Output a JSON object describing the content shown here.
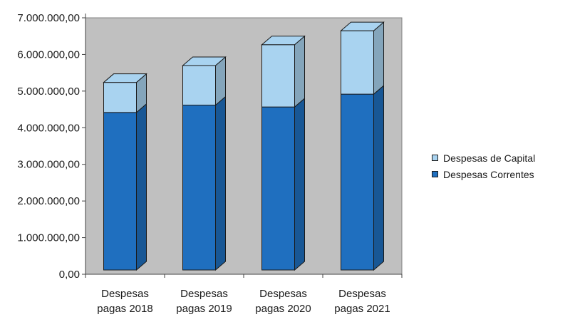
{
  "chart_data": {
    "type": "bar",
    "stacked": true,
    "three_d": true,
    "categories": [
      "Despesas pagas 2018",
      "Despesas pagas 2019",
      "Despesas pagas 2020",
      "Despesas pagas 2021"
    ],
    "category_lines": [
      [
        "Despesas",
        "pagas 2018"
      ],
      [
        "Despesas",
        "pagas 2019"
      ],
      [
        "Despesas",
        "pagas 2020"
      ],
      [
        "Despesas",
        "pagas 2021"
      ]
    ],
    "series": [
      {
        "name": "Despesas Correntes",
        "color": "#1f6fbf",
        "values": [
          4300000,
          4500000,
          4450000,
          4800000
        ]
      },
      {
        "name": "Despesas de Capital",
        "color": "#a9d3f0",
        "values": [
          820000,
          1080000,
          1700000,
          1730000
        ]
      }
    ],
    "ylim": [
      0,
      7000000
    ],
    "yticks": [
      "0,00",
      "1.000.000,00",
      "2.000.000,00",
      "3.000.000,00",
      "4.000.000,00",
      "5.000.000,00",
      "6.000.000,00",
      "7.000.000,00"
    ],
    "grid": false,
    "legend_position": "right",
    "plot_background": "#c0c0c0",
    "legend": [
      {
        "label": "Despesas de Capital",
        "color": "#a9d3f0"
      },
      {
        "label": "Despesas Correntes",
        "color": "#1f6fbf"
      }
    ]
  }
}
